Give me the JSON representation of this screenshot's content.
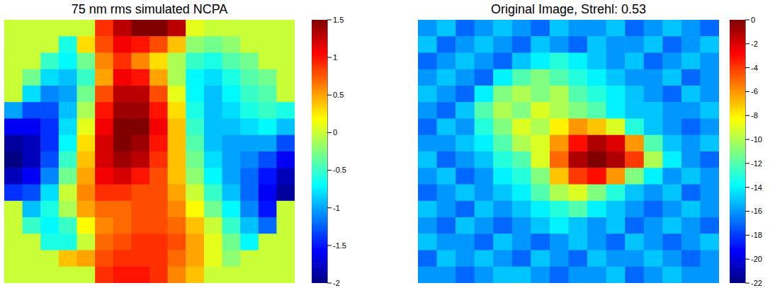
{
  "chart_data": [
    {
      "type": "heatmap",
      "title": "75 nm rms simulated NCPA",
      "colorbar_range": [
        -2,
        1.5
      ],
      "colorbar_ticks": [
        1.5,
        1,
        0.5,
        0,
        -0.5,
        -1,
        -1.5,
        -2
      ],
      "cells": [
        [
          0,
          0,
          0,
          0,
          0,
          0.9,
          1.3,
          1.5,
          1.5,
          1.3,
          0.1,
          0,
          0,
          0,
          0,
          0
        ],
        [
          0,
          0,
          0,
          -0.6,
          0.3,
          0.8,
          1.1,
          1.0,
          0.8,
          0.4,
          -0.2,
          -0.3,
          -0.2,
          0,
          0,
          0
        ],
        [
          0,
          0,
          -0.5,
          -0.7,
          -0.3,
          0.6,
          0.9,
          0.6,
          0.3,
          -0.1,
          -0.5,
          -0.6,
          -0.4,
          -0.3,
          0,
          0
        ],
        [
          0,
          -0.3,
          -0.8,
          -0.9,
          -0.5,
          0.5,
          1.1,
          1.0,
          0.5,
          -0.1,
          -0.7,
          -0.8,
          -0.6,
          -0.4,
          -0.3,
          0
        ],
        [
          0,
          -0.8,
          -1.1,
          -1.0,
          -0.3,
          0.8,
          1.3,
          1.3,
          0.8,
          0.1,
          -0.7,
          -0.9,
          -0.7,
          -0.5,
          -0.4,
          0
        ],
        [
          -1.0,
          -1.3,
          -1.3,
          -0.9,
          -0.1,
          1.0,
          1.4,
          1.4,
          1.0,
          0.3,
          -0.6,
          -0.9,
          -0.8,
          -0.6,
          -0.5,
          -0.6
        ],
        [
          -1.6,
          -1.6,
          -1.4,
          -0.8,
          0.1,
          1.1,
          1.5,
          1.5,
          1.1,
          0.4,
          -0.5,
          -0.9,
          -0.9,
          -0.8,
          -0.7,
          -0.9
        ],
        [
          -1.9,
          -1.8,
          -1.4,
          -0.7,
          0.3,
          1.2,
          1.5,
          1.4,
          1.0,
          0.4,
          -0.4,
          -0.9,
          -1.0,
          -1.0,
          -1.0,
          -1.3
        ],
        [
          -2.0,
          -1.8,
          -1.3,
          -0.5,
          0.4,
          1.2,
          1.4,
          1.3,
          0.9,
          0.4,
          -0.3,
          -0.8,
          -1.0,
          -1.1,
          -1.3,
          -1.6
        ],
        [
          -1.8,
          -1.6,
          -1.1,
          -0.3,
          0.5,
          1.1,
          1.2,
          1.0,
          0.8,
          0.4,
          -0.2,
          -0.7,
          -1.0,
          -1.2,
          -1.5,
          -1.8
        ],
        [
          -1.4,
          -1.3,
          -0.8,
          0.0,
          0.6,
          0.9,
          0.9,
          0.8,
          0.8,
          0.5,
          0.0,
          -0.5,
          -0.9,
          -1.2,
          -1.6,
          -1.9
        ],
        [
          0,
          -0.9,
          -0.6,
          -0.1,
          0.5,
          0.7,
          0.7,
          0.8,
          0.8,
          0.6,
          0.2,
          -0.3,
          -0.7,
          -1.1,
          -1.5,
          0
        ],
        [
          0,
          -0.5,
          -0.7,
          -0.5,
          0.2,
          0.6,
          0.7,
          0.8,
          0.8,
          0.7,
          0.4,
          0.0,
          -0.5,
          -0.9,
          -1.2,
          0
        ],
        [
          0,
          0,
          -0.6,
          -0.6,
          0.0,
          0.7,
          0.8,
          0.9,
          0.9,
          0.8,
          0.5,
          0.1,
          -0.3,
          -0.7,
          0,
          0
        ],
        [
          0,
          0,
          0,
          0.4,
          0.5,
          0.8,
          0.9,
          0.9,
          0.9,
          0.7,
          0.5,
          0.1,
          -0.2,
          0,
          0,
          0
        ],
        [
          0,
          0,
          0,
          0,
          0,
          0.9,
          1.0,
          1.0,
          0.9,
          0.6,
          0.4,
          0,
          0,
          0,
          0,
          0
        ]
      ]
    },
    {
      "type": "heatmap",
      "title": "Original Image, Strehl: 0.53",
      "colorbar_range": [
        -22,
        0
      ],
      "colorbar_ticks": [
        0,
        -2,
        -4,
        -6,
        -8,
        -10,
        -12,
        -14,
        -16,
        -18,
        -20,
        -22
      ],
      "cells": [
        [
          -16,
          -15,
          -17,
          -16,
          -15,
          -16,
          -17,
          -15,
          -16,
          -16,
          -15,
          -17,
          -16,
          -15,
          -16,
          -17
        ],
        [
          -15,
          -17,
          -16,
          -15,
          -16,
          -17,
          -15,
          -16,
          -17,
          -15,
          -16,
          -16,
          -15,
          -17,
          -16,
          -15
        ],
        [
          -17,
          -16,
          -15,
          -16,
          -17,
          -15,
          -14,
          -13,
          -14,
          -15,
          -16,
          -15,
          -17,
          -16,
          -15,
          -16
        ],
        [
          -16,
          -15,
          -16,
          -17,
          -14,
          -12,
          -11,
          -12,
          -13,
          -14,
          -15,
          -16,
          -16,
          -15,
          -17,
          -16
        ],
        [
          -15,
          -16,
          -17,
          -14,
          -11,
          -10,
          -11,
          -10,
          -12,
          -13,
          -14,
          -15,
          -16,
          -17,
          -15,
          -16
        ],
        [
          -16,
          -17,
          -15,
          -12,
          -10,
          -11,
          -9,
          -10,
          -11,
          -12,
          -14,
          -15,
          -15,
          -16,
          -16,
          -15
        ],
        [
          -17,
          -15,
          -16,
          -13,
          -11,
          -9,
          -10,
          -8,
          -6,
          -7,
          -9,
          -13,
          -15,
          -16,
          -17,
          -16
        ],
        [
          -16,
          -16,
          -15,
          -14,
          -12,
          -10,
          -9,
          -6,
          -3,
          -1,
          -2,
          -6,
          -12,
          -15,
          -16,
          -15
        ],
        [
          -15,
          -17,
          -16,
          -15,
          -13,
          -12,
          -9,
          -5,
          -1,
          0,
          -1,
          -4,
          -10,
          -14,
          -16,
          -17
        ],
        [
          -16,
          -15,
          -17,
          -16,
          -14,
          -13,
          -11,
          -7,
          -4,
          -3,
          -6,
          -11,
          -14,
          -16,
          -15,
          -16
        ],
        [
          -17,
          -16,
          -15,
          -16,
          -15,
          -14,
          -12,
          -10,
          -9,
          -11,
          -13,
          -15,
          -16,
          -15,
          -17,
          -16
        ],
        [
          -15,
          -16,
          -17,
          -15,
          -16,
          -15,
          -14,
          -13,
          -12,
          -14,
          -15,
          -16,
          -17,
          -16,
          -15,
          -16
        ],
        [
          -16,
          -17,
          -15,
          -16,
          -17,
          -16,
          -15,
          -14,
          -15,
          -16,
          -15,
          -17,
          -16,
          -15,
          -16,
          -17
        ],
        [
          -15,
          -16,
          -16,
          -17,
          -15,
          -16,
          -17,
          -16,
          -15,
          -16,
          -17,
          -15,
          -16,
          -17,
          -16,
          -15
        ],
        [
          -17,
          -15,
          -16,
          -15,
          -16,
          -17,
          -15,
          -16,
          -17,
          -15,
          -16,
          -16,
          -15,
          -16,
          -17,
          -16
        ],
        [
          -16,
          -16,
          -17,
          -16,
          -15,
          -15,
          -16,
          -17,
          -16,
          -16,
          -15,
          -17,
          -16,
          -15,
          -16,
          -16
        ]
      ]
    }
  ]
}
